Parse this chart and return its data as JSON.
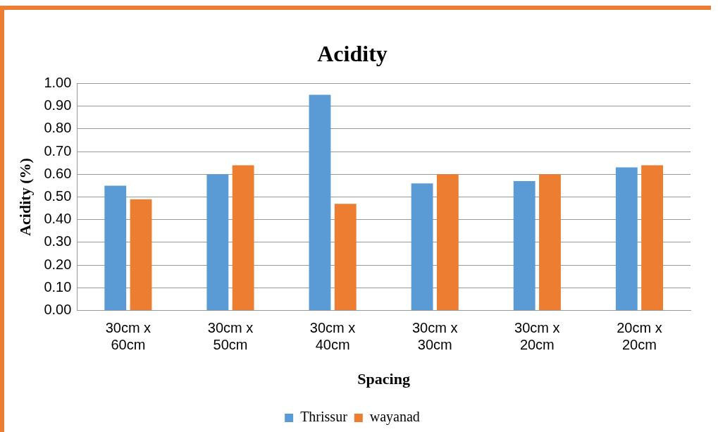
{
  "chart_data": {
    "type": "bar",
    "title": "Acidity",
    "xlabel": "Spacing",
    "ylabel": "Acidity (%)",
    "categories": [
      "30cm x 60cm",
      "30cm x 50cm",
      "30cm x 40cm",
      "30cm x 30cm",
      "30cm x 20cm",
      "20cm x 20cm"
    ],
    "series": [
      {
        "name": "Thrissur",
        "color": "#5b9bd5",
        "values": [
          0.55,
          0.6,
          0.95,
          0.56,
          0.57,
          0.63
        ]
      },
      {
        "name": "wayanad",
        "color": "#ed7d31",
        "values": [
          0.49,
          0.64,
          0.47,
          0.6,
          0.6,
          0.64
        ]
      }
    ],
    "ylim": [
      0,
      1
    ],
    "yticks": [
      {
        "value": 0,
        "label": "0.00"
      },
      {
        "value": 0.1,
        "label": "0.10"
      },
      {
        "value": 0.2,
        "label": "0.20"
      },
      {
        "value": 0.3,
        "label": "0.30"
      },
      {
        "value": 0.4,
        "label": "0.40"
      },
      {
        "value": 0.5,
        "label": "0.50"
      },
      {
        "value": 0.6,
        "label": "0.60"
      },
      {
        "value": 0.7,
        "label": "0.70"
      },
      {
        "value": 0.8,
        "label": "0.80"
      },
      {
        "value": 0.9,
        "label": "0.90"
      },
      {
        "value": 1,
        "label": "1.00"
      }
    ],
    "grid": "y",
    "legend": "bottom"
  }
}
